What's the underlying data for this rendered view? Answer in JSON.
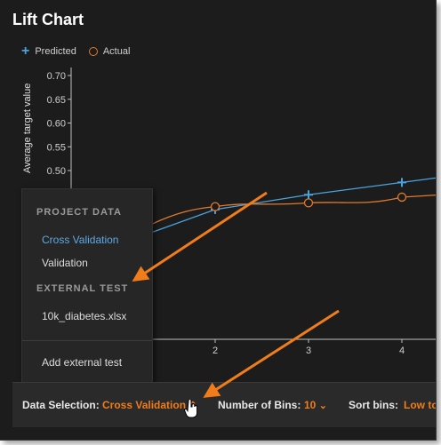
{
  "title": "Lift Chart",
  "legend": {
    "predicted": "Predicted",
    "actual": "Actual"
  },
  "colors": {
    "predicted": "#4aa3df",
    "actual": "#e07a2e",
    "accent": "#f07d1a",
    "selected": "#5da9e6"
  },
  "chart_data": {
    "type": "line",
    "ylabel": "Average target value",
    "y_ticks": [
      "0.70",
      "0.65",
      "0.60",
      "0.55",
      "0.50"
    ],
    "x_ticks": [
      "2",
      "3",
      "4"
    ],
    "series": [
      {
        "name": "Predicted",
        "marker": "plus",
        "points": [
          [
            2,
            0.418
          ],
          [
            3,
            0.449
          ],
          [
            4,
            0.475
          ]
        ]
      },
      {
        "name": "Actual",
        "marker": "circle",
        "points": [
          [
            2,
            0.424
          ],
          [
            3,
            0.432
          ],
          [
            4,
            0.444
          ]
        ]
      }
    ]
  },
  "menu": {
    "project_section": "PROJECT DATA",
    "cross_validation": "Cross Validation",
    "validation": "Validation",
    "external_section": "EXTERNAL TEST",
    "external_file": "10k_diabetes.xlsx",
    "add_external": "Add external test"
  },
  "bottom_bar": {
    "data_selection_label": "Data Selection:",
    "data_selection_value": "Cross Validation",
    "bins_label": "Number of Bins:",
    "bins_value": "10",
    "sort_label": "Sort bins:",
    "sort_value": "Low to"
  }
}
